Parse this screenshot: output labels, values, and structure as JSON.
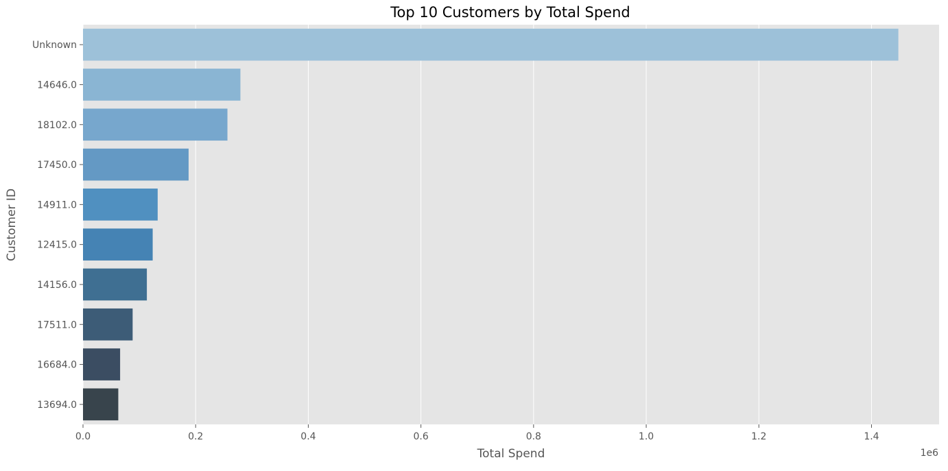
{
  "chart_data": {
    "type": "bar",
    "orientation": "horizontal",
    "title": "Top 10 Customers by Total Spend",
    "xlabel": "Total Spend",
    "ylabel": "Customer ID",
    "x_offset_label": "1e6",
    "categories": [
      "Unknown",
      "14646.0",
      "18102.0",
      "17450.0",
      "14911.0",
      "12415.0",
      "14156.0",
      "17511.0",
      "16684.0",
      "13694.0"
    ],
    "values": [
      1447682,
      279489,
      256438,
      187482,
      132573,
      123725,
      113385,
      88125,
      65892,
      62653
    ],
    "value_scale": 1000000,
    "xlim": [
      0,
      1.52
    ],
    "xticks": [
      0.0,
      0.2,
      0.4,
      0.6,
      0.8,
      1.0,
      1.2,
      1.4
    ],
    "xtick_labels": [
      "0.0",
      "0.2",
      "0.4",
      "0.6",
      "0.8",
      "1.0",
      "1.2",
      "1.4"
    ],
    "grid": true,
    "colors": [
      "#9dc1d9",
      "#8ab5d3",
      "#77a7cd",
      "#6499c4",
      "#5090c0",
      "#4583b4",
      "#3f6f92",
      "#3d5c77",
      "#3b4d62",
      "#38444c"
    ],
    "plot_background": "#e5e5e5",
    "grid_color": "#ffffff"
  }
}
